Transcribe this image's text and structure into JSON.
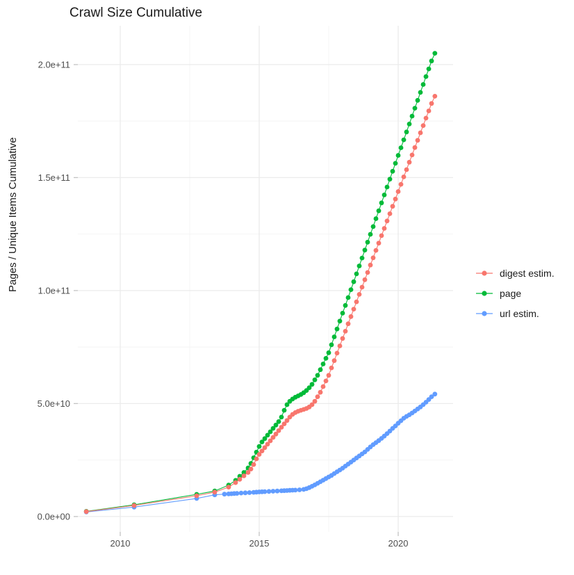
{
  "chart_data": {
    "type": "scatter",
    "title": "Crawl Size Cumulative",
    "xlabel": "",
    "ylabel": "Pages / Unique Items Cumulative",
    "legend_position": "right",
    "grid": true,
    "theme": {
      "background": "#ffffff",
      "grid_major": "#ebebeb",
      "grid_minor": "#f4f4f4",
      "tick_color": "#c2c2c2",
      "tick_label_color": "#4d4d4d",
      "title_color": "#1a1a1a"
    },
    "x_axis": {
      "lim": [
        2008.475,
        2021.975
      ],
      "ticks": [
        2010,
        2015,
        2020
      ],
      "tick_labels": [
        "2010",
        "2015",
        "2020"
      ],
      "minor_ticks": [
        2012.5,
        2017.5
      ]
    },
    "y_axis": {
      "value_scale": 1000000000,
      "lim": [
        -6.8,
        217.2
      ],
      "ticks": [
        0,
        50,
        100,
        150,
        200
      ],
      "tick_labels": [
        "0.0e+00",
        "5.0e+10",
        "1.0e+11",
        "1.5e+11",
        "2.0e+11"
      ],
      "minor_ticks": [
        25,
        75,
        125,
        175
      ]
    },
    "series": [
      {
        "name": "page",
        "color": "#00BA38",
        "points": [
          [
            2008.78,
            2.3
          ],
          [
            2010.5,
            5.2
          ],
          [
            2012.75,
            9.8
          ],
          [
            2013.4,
            11.3
          ],
          [
            2013.9,
            13.9
          ],
          [
            2014.15,
            16.0
          ],
          [
            2014.3,
            17.8
          ],
          [
            2014.45,
            19.5
          ],
          [
            2014.6,
            21.5
          ],
          [
            2014.7,
            23.5
          ],
          [
            2014.8,
            26.0
          ],
          [
            2014.9,
            28.5
          ],
          [
            2015.0,
            31.0
          ],
          [
            2015.1,
            33.0
          ],
          [
            2015.2,
            34.5
          ],
          [
            2015.3,
            36.0
          ],
          [
            2015.4,
            37.5
          ],
          [
            2015.5,
            39.0
          ],
          [
            2015.6,
            40.5
          ],
          [
            2015.7,
            42.0
          ],
          [
            2015.8,
            44.0
          ],
          [
            2015.9,
            47.0
          ],
          [
            2016.0,
            49.5
          ],
          [
            2016.1,
            51.0
          ],
          [
            2016.2,
            52.0
          ],
          [
            2016.3,
            52.8
          ],
          [
            2016.4,
            53.4
          ],
          [
            2016.5,
            54.0
          ],
          [
            2016.6,
            54.8
          ],
          [
            2016.7,
            55.8
          ],
          [
            2016.8,
            57.0
          ],
          [
            2016.9,
            58.5
          ],
          [
            2017.0,
            60.5
          ],
          [
            2017.1,
            62.5
          ],
          [
            2017.2,
            65.0
          ],
          [
            2017.3,
            67.5
          ],
          [
            2017.4,
            70.0
          ],
          [
            2017.5,
            72.5
          ],
          [
            2017.6,
            76.0
          ],
          [
            2017.7,
            79.5
          ],
          [
            2017.8,
            83.0
          ],
          [
            2017.9,
            86.5
          ],
          [
            2018.0,
            90.0
          ],
          [
            2018.1,
            93.4
          ],
          [
            2018.2,
            96.9
          ],
          [
            2018.3,
            100.4
          ],
          [
            2018.4,
            103.9
          ],
          [
            2018.5,
            107.4
          ],
          [
            2018.6,
            110.9
          ],
          [
            2018.7,
            114.4
          ],
          [
            2018.8,
            117.9
          ],
          [
            2018.9,
            121.4
          ],
          [
            2019.0,
            124.9
          ],
          [
            2019.1,
            128.3
          ],
          [
            2019.2,
            131.8
          ],
          [
            2019.3,
            135.3
          ],
          [
            2019.4,
            138.8
          ],
          [
            2019.5,
            142.3
          ],
          [
            2019.6,
            145.8
          ],
          [
            2019.7,
            149.3
          ],
          [
            2019.8,
            152.8
          ],
          [
            2019.9,
            156.3
          ],
          [
            2020.0,
            159.8
          ],
          [
            2020.1,
            163.2
          ],
          [
            2020.2,
            166.7
          ],
          [
            2020.3,
            170.2
          ],
          [
            2020.4,
            173.7
          ],
          [
            2020.5,
            177.2
          ],
          [
            2020.6,
            180.7
          ],
          [
            2020.7,
            184.2
          ],
          [
            2020.8,
            187.7
          ],
          [
            2020.9,
            191.2
          ],
          [
            2021.0,
            194.7
          ],
          [
            2021.1,
            198.1
          ],
          [
            2021.2,
            201.6
          ],
          [
            2021.32,
            205.0
          ]
        ]
      },
      {
        "name": "url estim.",
        "color": "#619CFF",
        "points": [
          [
            2008.78,
            2.0
          ],
          [
            2010.5,
            4.2
          ],
          [
            2012.75,
            8.0
          ],
          [
            2013.4,
            9.6
          ],
          [
            2013.75,
            9.9
          ],
          [
            2013.9,
            10.0
          ],
          [
            2014.0,
            10.1
          ],
          [
            2014.1,
            10.2
          ],
          [
            2014.2,
            10.25
          ],
          [
            2014.35,
            10.4
          ],
          [
            2014.5,
            10.5
          ],
          [
            2014.65,
            10.6
          ],
          [
            2014.8,
            10.7
          ],
          [
            2014.9,
            10.8
          ],
          [
            2015.0,
            10.9
          ],
          [
            2015.1,
            10.95
          ],
          [
            2015.2,
            11.0
          ],
          [
            2015.35,
            11.1
          ],
          [
            2015.5,
            11.2
          ],
          [
            2015.65,
            11.3
          ],
          [
            2015.8,
            11.4
          ],
          [
            2015.9,
            11.45
          ],
          [
            2016.0,
            11.5
          ],
          [
            2016.1,
            11.6
          ],
          [
            2016.2,
            11.65
          ],
          [
            2016.3,
            11.7
          ],
          [
            2016.45,
            11.8
          ],
          [
            2016.6,
            12.0
          ],
          [
            2016.7,
            12.3
          ],
          [
            2016.8,
            12.8
          ],
          [
            2016.9,
            13.4
          ],
          [
            2017.0,
            14.0
          ],
          [
            2017.1,
            14.7
          ],
          [
            2017.2,
            15.4
          ],
          [
            2017.3,
            16.1
          ],
          [
            2017.4,
            16.8
          ],
          [
            2017.5,
            17.5
          ],
          [
            2017.6,
            18.2
          ],
          [
            2017.7,
            19.0
          ],
          [
            2017.8,
            19.8
          ],
          [
            2017.9,
            20.6
          ],
          [
            2018.0,
            21.4
          ],
          [
            2018.1,
            22.3
          ],
          [
            2018.2,
            23.2
          ],
          [
            2018.3,
            24.1
          ],
          [
            2018.4,
            25.0
          ],
          [
            2018.5,
            25.9
          ],
          [
            2018.6,
            26.8
          ],
          [
            2018.7,
            27.7
          ],
          [
            2018.8,
            28.6
          ],
          [
            2018.9,
            29.7
          ],
          [
            2019.0,
            30.8
          ],
          [
            2019.1,
            31.8
          ],
          [
            2019.2,
            32.7
          ],
          [
            2019.3,
            33.6
          ],
          [
            2019.4,
            34.6
          ],
          [
            2019.5,
            35.6
          ],
          [
            2019.6,
            36.7
          ],
          [
            2019.7,
            37.8
          ],
          [
            2019.8,
            39.0
          ],
          [
            2019.9,
            40.1
          ],
          [
            2020.0,
            41.3
          ],
          [
            2020.1,
            42.4
          ],
          [
            2020.2,
            43.5
          ],
          [
            2020.3,
            44.3
          ],
          [
            2020.4,
            45.0
          ],
          [
            2020.5,
            45.8
          ],
          [
            2020.6,
            46.7
          ],
          [
            2020.7,
            47.6
          ],
          [
            2020.8,
            48.5
          ],
          [
            2020.9,
            49.5
          ],
          [
            2021.0,
            50.6
          ],
          [
            2021.1,
            51.8
          ],
          [
            2021.2,
            53.0
          ],
          [
            2021.32,
            54.2
          ]
        ]
      },
      {
        "name": "digest estim.",
        "color": "#F8766D",
        "points": [
          [
            2008.78,
            2.2
          ],
          [
            2010.5,
            4.9
          ],
          [
            2012.75,
            9.2
          ],
          [
            2013.4,
            10.8
          ],
          [
            2013.9,
            13.0
          ],
          [
            2014.15,
            15.0
          ],
          [
            2014.3,
            16.5
          ],
          [
            2014.45,
            18.0
          ],
          [
            2014.6,
            19.5
          ],
          [
            2014.7,
            21.0
          ],
          [
            2014.8,
            23.0
          ],
          [
            2014.9,
            25.5
          ],
          [
            2015.0,
            27.5
          ],
          [
            2015.1,
            29.0
          ],
          [
            2015.2,
            30.5
          ],
          [
            2015.3,
            32.0
          ],
          [
            2015.4,
            33.5
          ],
          [
            2015.5,
            35.0
          ],
          [
            2015.6,
            36.5
          ],
          [
            2015.7,
            38.0
          ],
          [
            2015.8,
            39.5
          ],
          [
            2015.9,
            41.0
          ],
          [
            2016.0,
            42.5
          ],
          [
            2016.1,
            44.0
          ],
          [
            2016.2,
            45.2
          ],
          [
            2016.3,
            46.0
          ],
          [
            2016.4,
            46.6
          ],
          [
            2016.5,
            47.0
          ],
          [
            2016.6,
            47.4
          ],
          [
            2016.7,
            47.8
          ],
          [
            2016.8,
            48.5
          ],
          [
            2016.9,
            49.5
          ],
          [
            2017.0,
            51.0
          ],
          [
            2017.1,
            53.0
          ],
          [
            2017.2,
            55.0
          ],
          [
            2017.3,
            57.5
          ],
          [
            2017.4,
            60.0
          ],
          [
            2017.5,
            62.5
          ],
          [
            2017.6,
            65.8
          ],
          [
            2017.7,
            69.0
          ],
          [
            2017.8,
            72.3
          ],
          [
            2017.9,
            75.5
          ],
          [
            2018.0,
            78.8
          ],
          [
            2018.1,
            82.0
          ],
          [
            2018.2,
            85.3
          ],
          [
            2018.3,
            88.5
          ],
          [
            2018.4,
            91.8
          ],
          [
            2018.5,
            95.0
          ],
          [
            2018.6,
            98.3
          ],
          [
            2018.7,
            101.5
          ],
          [
            2018.8,
            104.8
          ],
          [
            2018.9,
            108.0
          ],
          [
            2019.0,
            111.3
          ],
          [
            2019.1,
            114.5
          ],
          [
            2019.2,
            117.8
          ],
          [
            2019.3,
            121.0
          ],
          [
            2019.4,
            124.3
          ],
          [
            2019.5,
            127.5
          ],
          [
            2019.6,
            130.8
          ],
          [
            2019.7,
            134.0
          ],
          [
            2019.8,
            137.3
          ],
          [
            2019.9,
            140.5
          ],
          [
            2020.0,
            143.8
          ],
          [
            2020.1,
            147.0
          ],
          [
            2020.2,
            150.3
          ],
          [
            2020.3,
            153.5
          ],
          [
            2020.4,
            156.8
          ],
          [
            2020.5,
            160.0
          ],
          [
            2020.6,
            163.3
          ],
          [
            2020.7,
            166.5
          ],
          [
            2020.8,
            169.8
          ],
          [
            2020.9,
            173.0
          ],
          [
            2021.0,
            176.3
          ],
          [
            2021.1,
            179.5
          ],
          [
            2021.2,
            182.8
          ],
          [
            2021.32,
            186.0
          ]
        ]
      }
    ],
    "legend_order": [
      "digest estim.",
      "page",
      "url estim."
    ]
  }
}
